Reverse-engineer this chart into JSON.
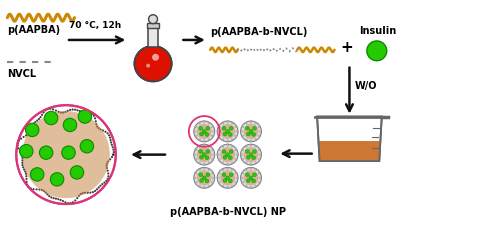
{
  "background_color": "#ffffff",
  "wavy_color_aapba": "#cc8800",
  "wavy_color_nvcl": "#888888",
  "flask_fill_color": "#dd1100",
  "flask_outline_color": "#444444",
  "arrow_color": "#111111",
  "insulin_color": "#22cc00",
  "insulin_edge_color": "#118800",
  "beaker_fill_color": "#cc7733",
  "beaker_outline_color": "#666666",
  "nanoparticle_shell_color": "#cccccc",
  "nanoparticle_shell_edge": "#999999",
  "nanoparticle_dot_color": "#22cc00",
  "nanoparticle_inner_color": "#cc8833",
  "large_circle_border_color": "#dd3377",
  "labels": {
    "aapba": "p(AAPBA)",
    "nvcl": "NVCL",
    "condition": "70 °C, 12h",
    "product": "p(AAPBA-b-NVCL)",
    "insulin": "Insulin",
    "wo": "W/O",
    "np_label": "p(AAPBA-b-NVCL) NP"
  },
  "fs_label": 7,
  "fs_condition": 6.5,
  "fs_product": 7,
  "fs_insulin": 7,
  "fs_wo": 7,
  "fs_np": 7,
  "fs_plus": 11
}
